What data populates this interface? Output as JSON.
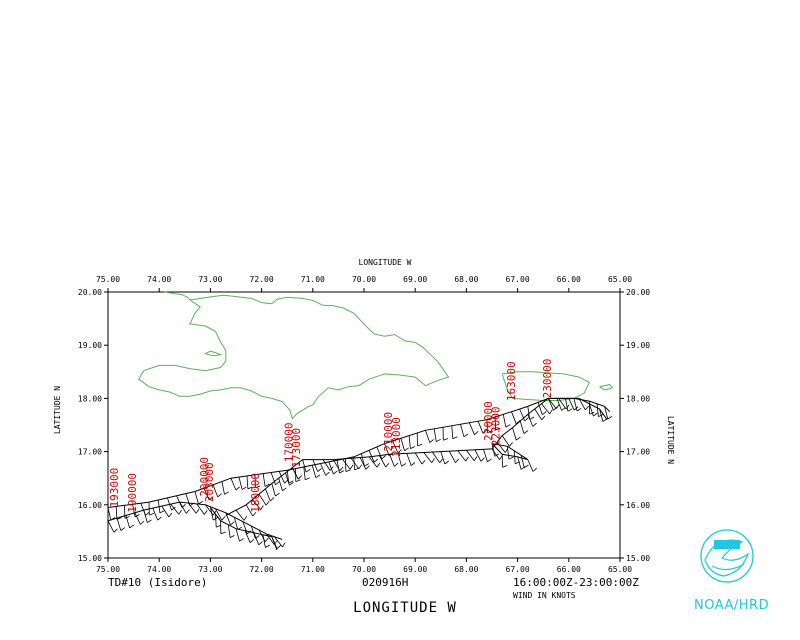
{
  "chart_data": {
    "type": "scatter",
    "subtype": "wind-barb-map",
    "x_axis": {
      "label": "LONGITUDE  W",
      "bottom_label": "LONGITUDE  W",
      "range": [
        75.0,
        65.0
      ],
      "ticks": [
        "75.00",
        "74.00",
        "73.00",
        "72.00",
        "71.00",
        "70.00",
        "69.00",
        "68.00",
        "67.00",
        "66.00",
        "65.00"
      ]
    },
    "y_axis": {
      "label": "LATITUDE  N",
      "range": [
        15.0,
        20.0
      ],
      "ticks": [
        "15.00",
        "16.00",
        "17.00",
        "18.00",
        "19.00",
        "20.00"
      ]
    },
    "storm": "TD#10 (Isidore)",
    "date": "020916H",
    "time_range": "16:00:00Z-23:00:00Z",
    "units": "WIND IN KNOTS",
    "colors": {
      "coast": "#59b359",
      "barbs": "#000000",
      "labels": "#cc0000",
      "logo": "#1ec8e0"
    },
    "coastline": [
      [
        [
          73.9,
          20.0
        ],
        [
          73.55,
          19.95
        ],
        [
          73.45,
          19.9
        ],
        [
          73.4,
          19.85
        ],
        [
          73.2,
          19.88
        ],
        [
          72.9,
          19.92
        ],
        [
          72.75,
          19.94
        ],
        [
          72.55,
          19.92
        ],
        [
          72.4,
          19.9
        ],
        [
          72.2,
          19.88
        ],
        [
          72.0,
          19.8
        ],
        [
          71.8,
          19.78
        ],
        [
          71.7,
          19.86
        ],
        [
          71.5,
          19.9
        ],
        [
          71.2,
          19.88
        ],
        [
          71.0,
          19.84
        ],
        [
          70.8,
          19.75
        ],
        [
          70.6,
          19.74
        ],
        [
          70.4,
          19.7
        ],
        [
          70.2,
          19.6
        ],
        [
          70.0,
          19.4
        ],
        [
          69.9,
          19.3
        ],
        [
          69.8,
          19.21
        ],
        [
          69.6,
          19.17
        ],
        [
          69.4,
          19.2
        ],
        [
          69.2,
          19.08
        ],
        [
          69.0,
          19.05
        ],
        [
          68.85,
          18.96
        ],
        [
          68.7,
          18.82
        ],
        [
          68.55,
          18.68
        ],
        [
          68.45,
          18.54
        ],
        [
          68.35,
          18.4
        ],
        [
          68.55,
          18.34
        ],
        [
          68.8,
          18.24
        ],
        [
          69.0,
          18.4
        ],
        [
          69.3,
          18.44
        ],
        [
          69.6,
          18.46
        ],
        [
          69.9,
          18.36
        ],
        [
          70.1,
          18.24
        ],
        [
          70.3,
          18.22
        ],
        [
          70.5,
          18.16
        ],
        [
          70.7,
          18.2
        ],
        [
          70.9,
          18.02
        ],
        [
          71.0,
          17.88
        ],
        [
          71.1,
          17.84
        ],
        [
          71.3,
          17.72
        ],
        [
          71.4,
          17.62
        ],
        [
          71.45,
          17.78
        ],
        [
          71.6,
          17.94
        ],
        [
          71.8,
          18.0
        ],
        [
          72.0,
          18.04
        ],
        [
          72.2,
          18.14
        ],
        [
          72.4,
          18.2
        ],
        [
          72.6,
          18.2
        ],
        [
          72.8,
          18.16
        ],
        [
          73.0,
          18.14
        ],
        [
          73.2,
          18.08
        ],
        [
          73.4,
          18.04
        ],
        [
          73.6,
          18.04
        ],
        [
          73.8,
          18.12
        ],
        [
          74.0,
          18.16
        ],
        [
          74.2,
          18.22
        ],
        [
          74.4,
          18.36
        ],
        [
          74.3,
          18.52
        ],
        [
          74.0,
          18.62
        ],
        [
          73.7,
          18.62
        ],
        [
          73.4,
          18.56
        ],
        [
          73.1,
          18.52
        ],
        [
          72.8,
          18.58
        ],
        [
          72.7,
          18.7
        ],
        [
          72.7,
          18.9
        ],
        [
          72.8,
          19.06
        ],
        [
          72.9,
          19.26
        ],
        [
          73.1,
          19.36
        ],
        [
          73.4,
          19.4
        ],
        [
          73.3,
          19.6
        ],
        [
          73.2,
          19.72
        ],
        [
          73.4,
          19.85
        ]
      ],
      [
        [
          73.0,
          18.89
        ],
        [
          72.9,
          18.86
        ],
        [
          72.8,
          18.82
        ],
        [
          72.95,
          18.8
        ],
        [
          73.1,
          18.84
        ],
        [
          73.0,
          18.89
        ]
      ],
      [
        [
          67.3,
          18.46
        ],
        [
          67.0,
          18.5
        ],
        [
          66.7,
          18.5
        ],
        [
          66.4,
          18.48
        ],
        [
          66.1,
          18.46
        ],
        [
          65.8,
          18.4
        ],
        [
          65.6,
          18.3
        ],
        [
          65.7,
          18.1
        ],
        [
          65.9,
          18.0
        ],
        [
          66.2,
          17.96
        ],
        [
          66.5,
          17.96
        ],
        [
          66.8,
          17.98
        ],
        [
          67.1,
          18.0
        ],
        [
          67.2,
          18.16
        ],
        [
          67.3,
          18.46
        ]
      ],
      [
        [
          65.4,
          18.22
        ],
        [
          65.2,
          18.26
        ],
        [
          65.15,
          18.2
        ],
        [
          65.3,
          18.16
        ],
        [
          65.4,
          18.22
        ]
      ]
    ],
    "flight_labels": [
      {
        "text": "193000",
        "lon": 74.8,
        "lat": 15.95
      },
      {
        "text": "190000",
        "lon": 74.45,
        "lat": 15.85
      },
      {
        "text": "200000",
        "lon": 73.05,
        "lat": 16.15
      },
      {
        "text": "203000",
        "lon": 72.95,
        "lat": 16.05
      },
      {
        "text": "180000",
        "lon": 72.05,
        "lat": 15.85
      },
      {
        "text": "170000",
        "lon": 71.4,
        "lat": 16.8
      },
      {
        "text": "173000",
        "lon": 71.25,
        "lat": 16.7
      },
      {
        "text": "210000",
        "lon": 69.45,
        "lat": 17.0
      },
      {
        "text": "213000",
        "lon": 69.3,
        "lat": 16.9
      },
      {
        "text": "220000",
        "lon": 67.5,
        "lat": 17.2
      },
      {
        "text": "223000",
        "lon": 67.35,
        "lat": 17.1
      },
      {
        "text": "163000",
        "lon": 67.05,
        "lat": 17.95
      },
      {
        "text": "230000",
        "lon": 66.35,
        "lat": 18.0
      }
    ],
    "tracks": [
      [
        [
          75.0,
          15.95
        ],
        [
          74.2,
          16.05
        ],
        [
          73.3,
          16.25
        ],
        [
          72.6,
          16.5
        ],
        [
          71.5,
          16.65
        ],
        [
          70.2,
          16.9
        ],
        [
          69.6,
          17.15
        ],
        [
          68.8,
          17.4
        ],
        [
          67.6,
          17.6
        ],
        [
          66.8,
          17.85
        ],
        [
          66.4,
          18.0
        ],
        [
          65.9,
          18.0
        ],
        [
          65.6,
          17.95
        ],
        [
          65.3,
          17.85
        ],
        [
          65.2,
          17.75
        ]
      ],
      [
        [
          75.0,
          15.7
        ],
        [
          74.3,
          15.9
        ],
        [
          73.6,
          16.05
        ],
        [
          73.1,
          16.0
        ],
        [
          72.7,
          15.85
        ],
        [
          72.2,
          15.6
        ],
        [
          71.9,
          15.45
        ],
        [
          71.6,
          15.35
        ]
      ],
      [
        [
          73.0,
          15.95
        ],
        [
          72.8,
          15.7
        ],
        [
          72.5,
          15.55
        ],
        [
          71.8,
          15.4
        ],
        [
          71.7,
          15.15
        ]
      ],
      [
        [
          71.4,
          16.7
        ],
        [
          71.2,
          16.85
        ],
        [
          70.6,
          16.85
        ],
        [
          69.9,
          16.9
        ],
        [
          69.5,
          16.95
        ],
        [
          68.5,
          17.0
        ],
        [
          67.5,
          17.05
        ],
        [
          67.3,
          17.3
        ],
        [
          67.1,
          17.45
        ],
        [
          66.8,
          17.7
        ],
        [
          66.4,
          18.0
        ],
        [
          65.8,
          18.0
        ],
        [
          65.4,
          17.8
        ],
        [
          65.25,
          17.6
        ]
      ],
      [
        [
          67.5,
          17.15
        ],
        [
          67.3,
          16.95
        ],
        [
          67.0,
          16.9
        ],
        [
          66.8,
          16.85
        ],
        [
          67.2,
          17.1
        ],
        [
          67.5,
          17.15
        ]
      ],
      [
        [
          71.4,
          16.7
        ],
        [
          71.8,
          16.4
        ],
        [
          72.3,
          16.0
        ],
        [
          72.7,
          15.8
        ]
      ]
    ]
  }
}
